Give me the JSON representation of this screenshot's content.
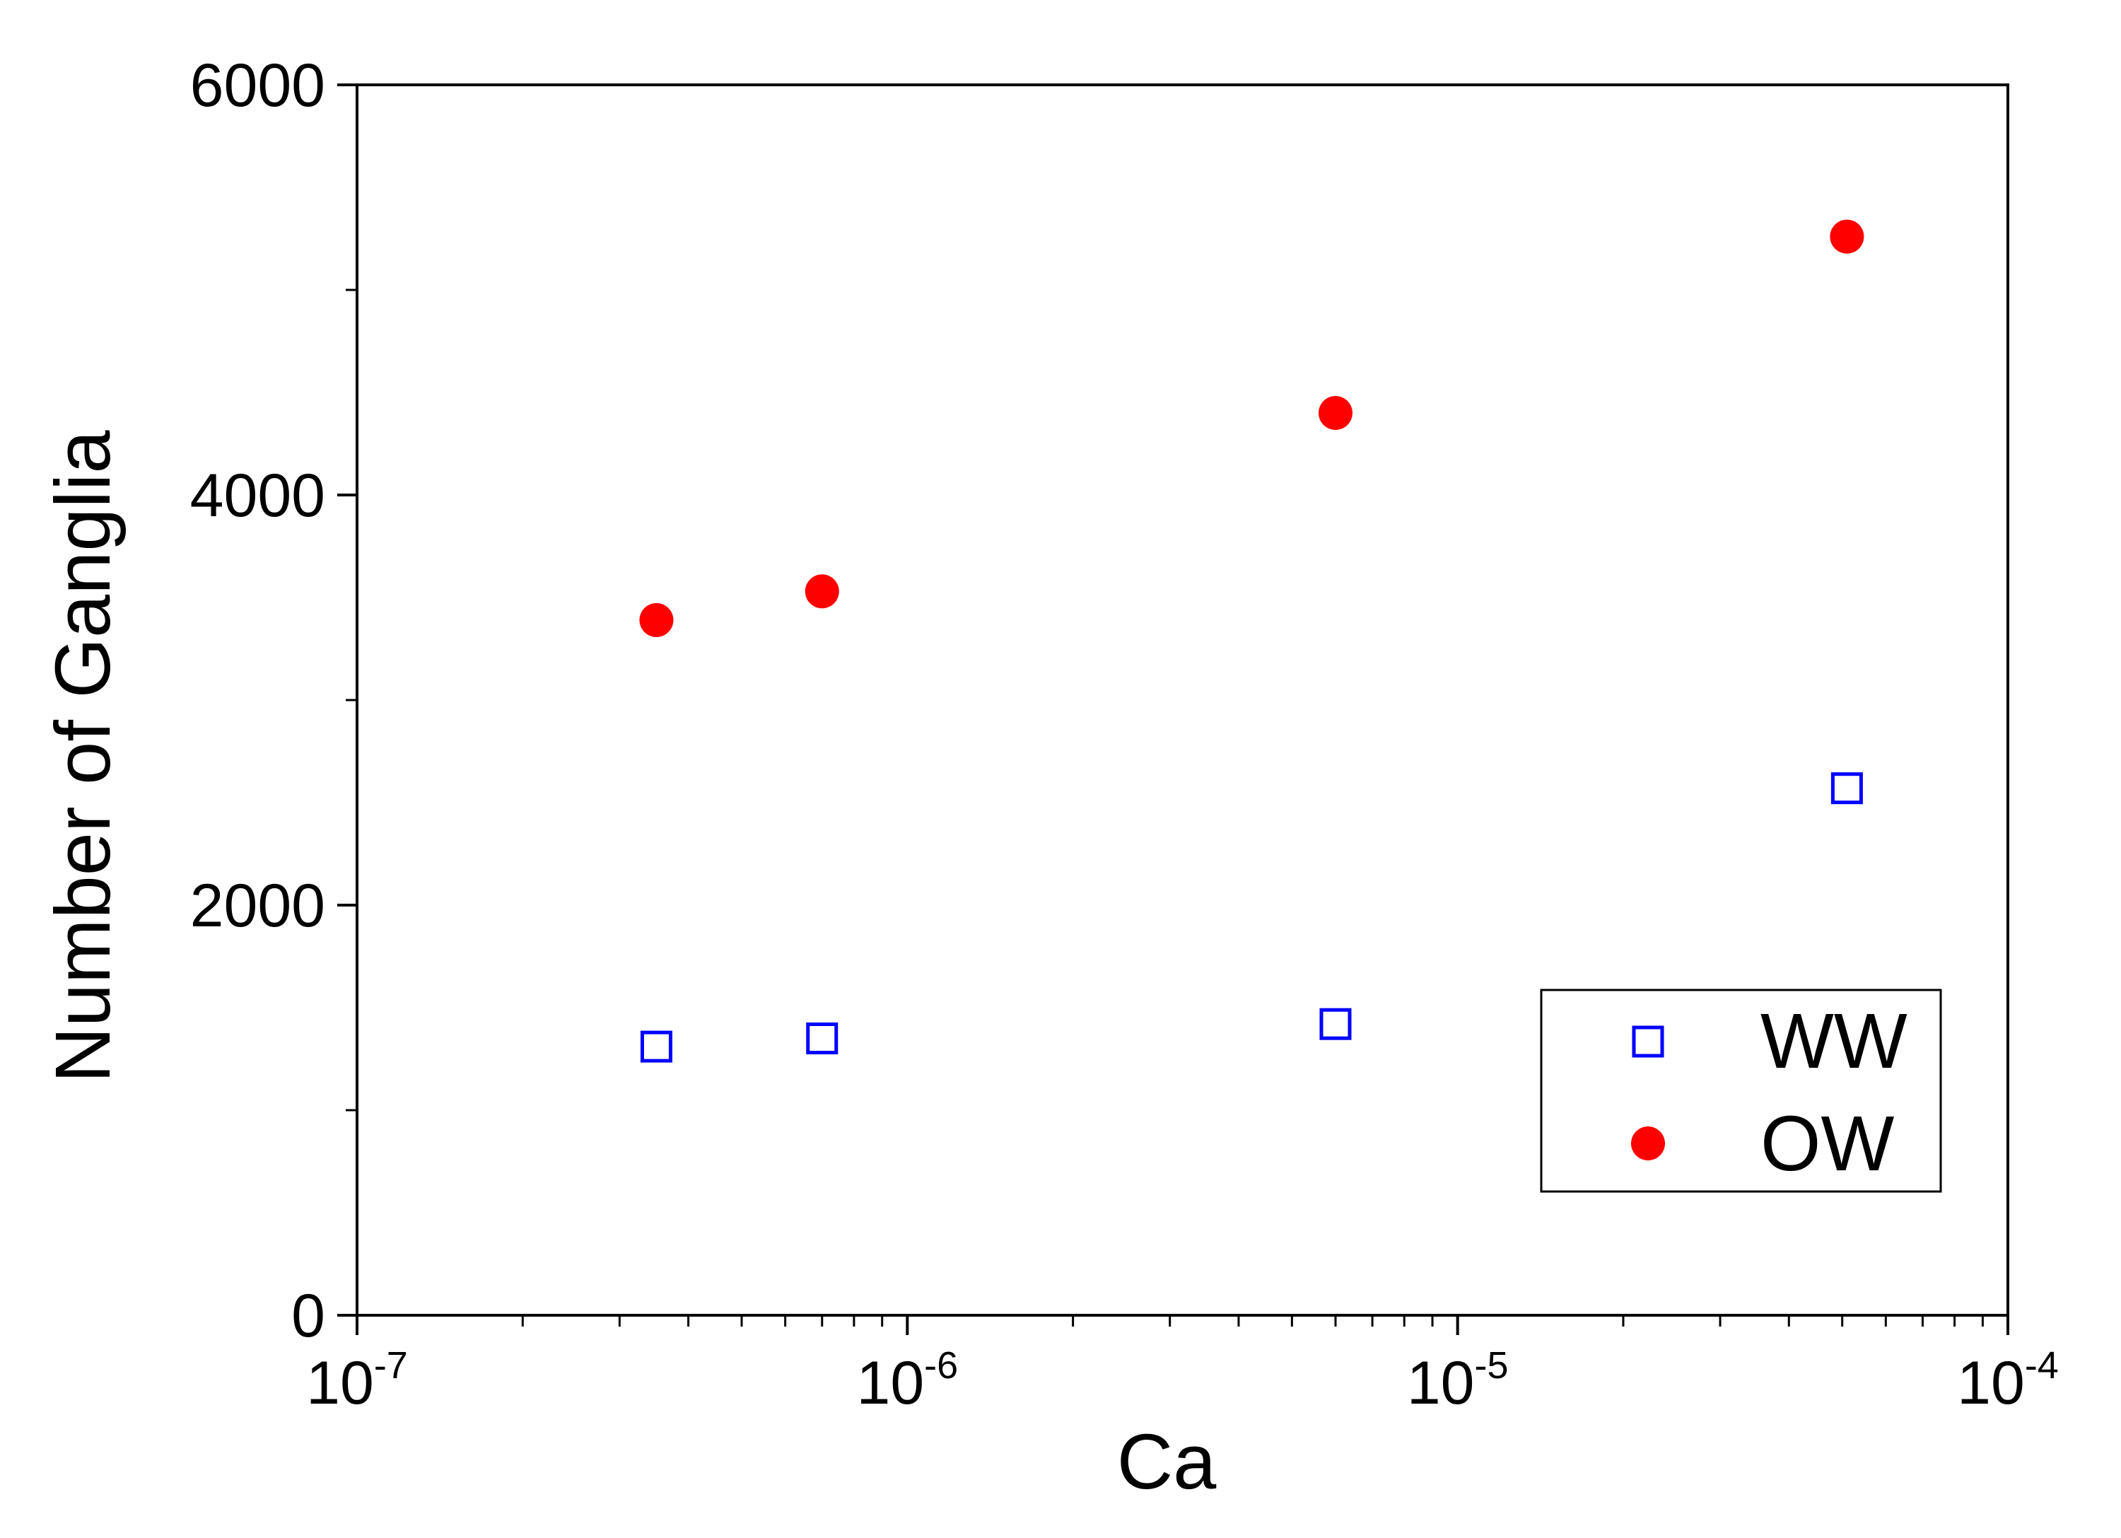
{
  "chart_data": {
    "type": "scatter",
    "xlabel": "Ca",
    "ylabel": "Number of Ganglia",
    "x_scale": "log",
    "xlim": [
      1e-07,
      0.0001
    ],
    "ylim": [
      0,
      6000
    ],
    "x_ticks": [
      {
        "value": 1e-07,
        "base": "10",
        "exp": "-7"
      },
      {
        "value": 1e-06,
        "base": "10",
        "exp": "-6"
      },
      {
        "value": 1e-05,
        "base": "10",
        "exp": "-5"
      },
      {
        "value": 0.0001,
        "base": "10",
        "exp": "-4"
      }
    ],
    "y_ticks": [
      {
        "value": 0,
        "label": "0"
      },
      {
        "value": 2000,
        "label": "2000"
      },
      {
        "value": 4000,
        "label": "4000"
      },
      {
        "value": 6000,
        "label": "6000"
      }
    ],
    "y_minor_ticks": [
      1000,
      3000,
      5000
    ],
    "grid": false,
    "legend_position": "bottom-right",
    "series": [
      {
        "name": "WW",
        "marker": "open-square",
        "color": "#0000ff",
        "x": [
          3.5e-07,
          7e-07,
          6e-06,
          5.1e-05
        ],
        "y": [
          1310,
          1350,
          1420,
          2570
        ]
      },
      {
        "name": "OW",
        "marker": "filled-circle",
        "color": "#ff0000",
        "x": [
          3.5e-07,
          7e-07,
          6e-06,
          5.1e-05
        ],
        "y": [
          3390,
          3530,
          4400,
          5260
        ]
      }
    ]
  }
}
